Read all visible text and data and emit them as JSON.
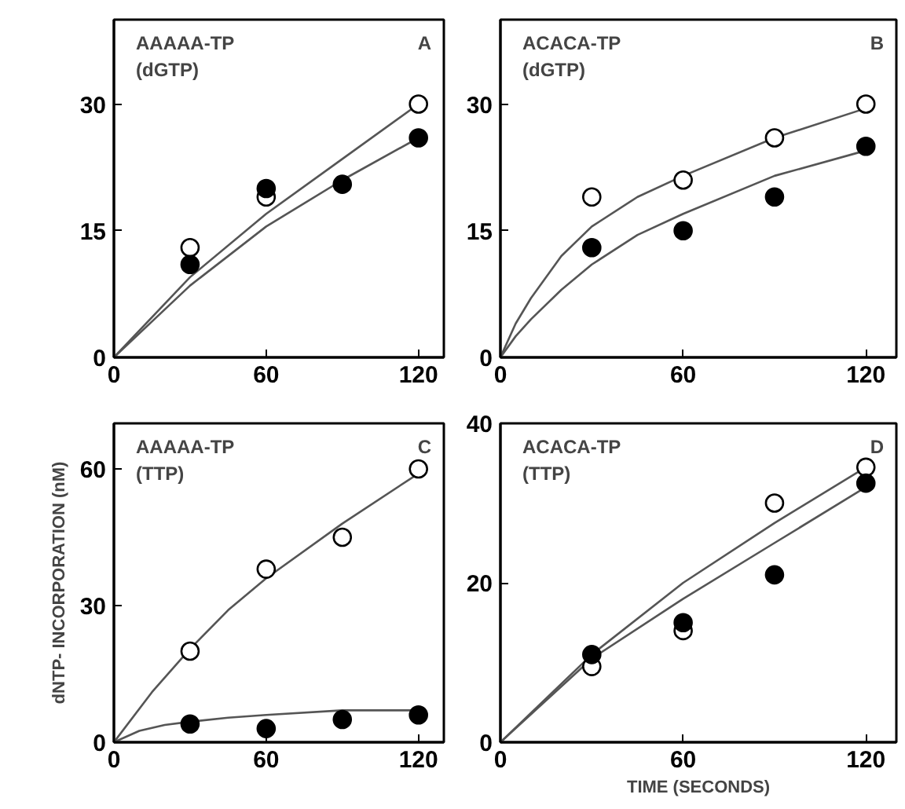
{
  "chart_data": [
    {
      "type": "scatter",
      "title": "AAAAA-TP\n(dGTP)",
      "annotations": [
        "A"
      ],
      "xlim": [
        0,
        130
      ],
      "ylim": [
        0,
        40
      ],
      "xticks": [
        0,
        60,
        120
      ],
      "yticks": [
        0,
        15,
        30
      ],
      "series": [
        {
          "color": "#ffffff",
          "marker": "circle",
          "x": [
            30,
            60,
            120
          ],
          "values": [
            13,
            19,
            30
          ]
        },
        {
          "color": "#000000",
          "marker": "circle",
          "x": [
            30,
            60,
            90,
            120
          ],
          "values": [
            11,
            20,
            20.5,
            26
          ]
        },
        {
          "type": "line",
          "color": "#555555",
          "x": [
            0,
            30,
            60,
            90,
            120
          ],
          "values": [
            0,
            9.5,
            17,
            23.5,
            30
          ]
        },
        {
          "type": "line",
          "color": "#555555",
          "x": [
            0,
            30,
            60,
            90,
            120
          ],
          "values": [
            0,
            8.5,
            15.5,
            21,
            26
          ]
        }
      ]
    },
    {
      "type": "scatter",
      "title": "ACACA-TP\n(dGTP)",
      "annotations": [
        "B"
      ],
      "xlim": [
        0,
        130
      ],
      "ylim": [
        0,
        40
      ],
      "xticks": [
        0,
        60,
        120
      ],
      "yticks": [
        0,
        15,
        30
      ],
      "series": [
        {
          "color": "#ffffff",
          "marker": "circle",
          "x": [
            30,
            60,
            90,
            120
          ],
          "values": [
            19,
            21,
            26,
            30
          ]
        },
        {
          "color": "#000000",
          "marker": "circle",
          "x": [
            30,
            60,
            90,
            120
          ],
          "values": [
            13,
            15,
            19,
            25
          ]
        },
        {
          "type": "line",
          "color": "#555555",
          "x": [
            0,
            5,
            10,
            20,
            30,
            45,
            60,
            90,
            120
          ],
          "values": [
            0,
            4,
            7,
            12,
            15.5,
            19,
            21.5,
            26,
            29.5
          ]
        },
        {
          "type": "line",
          "color": "#555555",
          "x": [
            0,
            5,
            10,
            20,
            30,
            45,
            60,
            90,
            120
          ],
          "values": [
            0,
            2.5,
            4.5,
            8,
            11,
            14.5,
            17,
            21.5,
            24.5
          ]
        }
      ]
    },
    {
      "type": "scatter",
      "title": "AAAAA-TP\n(TTP)",
      "annotations": [
        "C"
      ],
      "ylabel": "dNTP- INCORPORATION (nM)",
      "xlim": [
        0,
        130
      ],
      "ylim": [
        0,
        70
      ],
      "xticks": [
        0,
        60,
        120
      ],
      "yticks": [
        0,
        30,
        60
      ],
      "series": [
        {
          "color": "#ffffff",
          "marker": "circle",
          "x": [
            30,
            60,
            90,
            120
          ],
          "values": [
            20,
            38,
            45,
            60
          ]
        },
        {
          "color": "#000000",
          "marker": "circle",
          "x": [
            30,
            60,
            90,
            120
          ],
          "values": [
            4,
            3,
            5,
            6
          ]
        },
        {
          "type": "line",
          "color": "#555555",
          "x": [
            0,
            15,
            30,
            45,
            60,
            90,
            120
          ],
          "values": [
            0,
            11,
            20.5,
            29,
            36,
            48,
            59
          ]
        },
        {
          "type": "line",
          "color": "#555555",
          "x": [
            0,
            10,
            20,
            30,
            45,
            60,
            90,
            120
          ],
          "values": [
            0,
            2.5,
            3.8,
            4.5,
            5.4,
            6,
            7,
            7
          ]
        }
      ]
    },
    {
      "type": "scatter",
      "title": "ACACA-TP\n(TTP)",
      "annotations": [
        "D"
      ],
      "xlabel": "TIME (SECONDS)",
      "xlim": [
        0,
        130
      ],
      "ylim": [
        0,
        40
      ],
      "xticks": [
        0,
        60,
        120
      ],
      "yticks": [
        0,
        20,
        40
      ],
      "series": [
        {
          "color": "#ffffff",
          "marker": "circle",
          "x": [
            30,
            60,
            90,
            120
          ],
          "values": [
            9.5,
            14,
            30,
            34.5
          ]
        },
        {
          "color": "#000000",
          "marker": "circle",
          "x": [
            30,
            60,
            90,
            120
          ],
          "values": [
            11,
            15,
            21,
            32.5
          ]
        },
        {
          "type": "line",
          "color": "#555555",
          "x": [
            0,
            30,
            60,
            90,
            120
          ],
          "values": [
            0,
            11,
            20,
            27.5,
            34.5
          ]
        },
        {
          "type": "line",
          "color": "#555555",
          "x": [
            0,
            30,
            60,
            90,
            120
          ],
          "values": [
            0,
            10.5,
            18,
            25,
            32
          ]
        }
      ]
    }
  ]
}
